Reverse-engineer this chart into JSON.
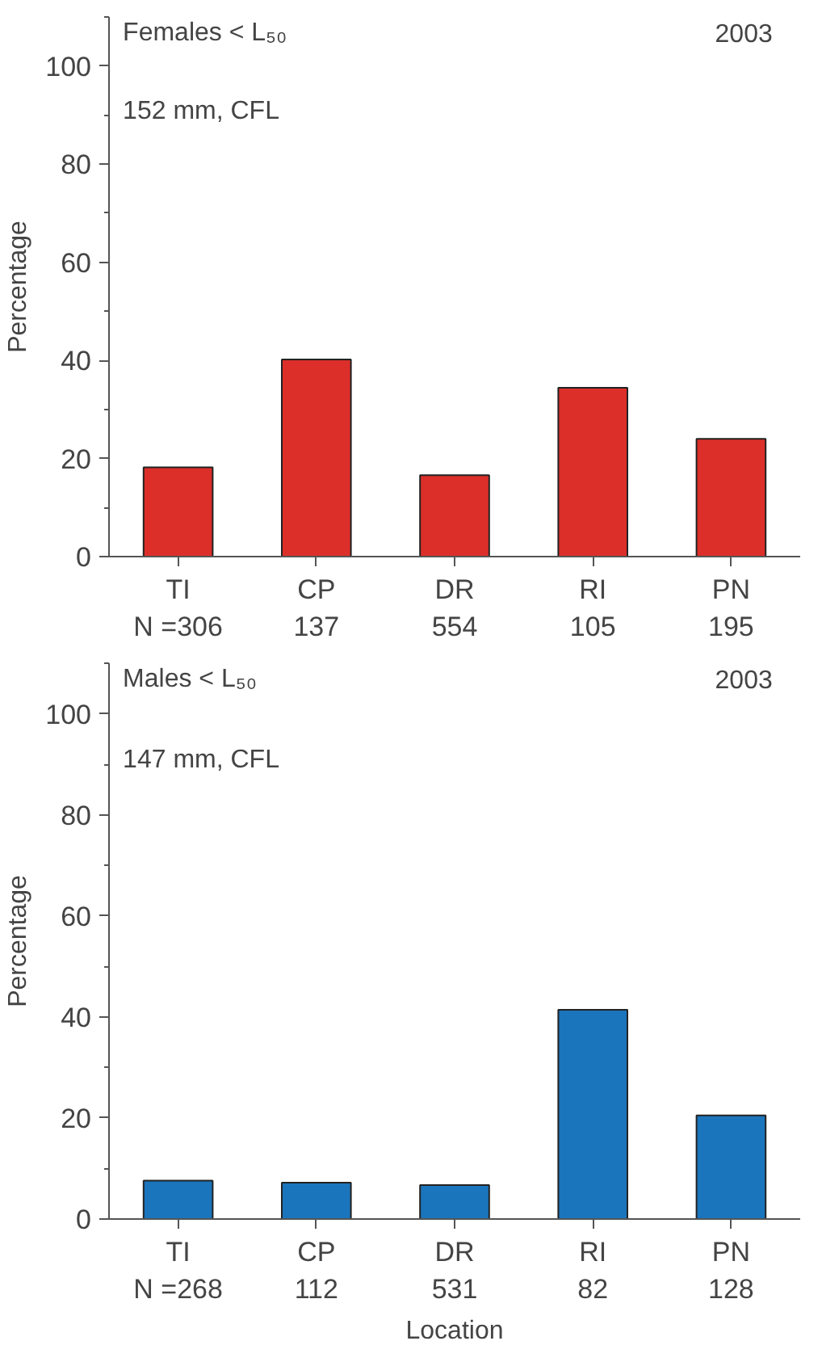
{
  "chart_data": [
    {
      "type": "bar",
      "title": "Females < L₅₀",
      "ylabel": "Percentage",
      "annotations": [
        "152 mm, CFL",
        "2003"
      ],
      "categories": [
        "TI\nN =306",
        "CP\n137",
        "DR\n554",
        "RI\n105",
        "PN\n195"
      ],
      "series": [
        {
          "color": "#dc2f2a",
          "values": [
            18.2,
            40.2,
            16.6,
            34.4,
            24.0
          ]
        }
      ],
      "ylim": [
        0,
        110
      ],
      "yticks": [
        0,
        20,
        40,
        60,
        80,
        100
      ]
    },
    {
      "type": "bar",
      "title": "Males < L₅₀",
      "ylabel": "Percentage",
      "xlabel": "Location",
      "annotations": [
        "147 mm, CFL",
        "2003"
      ],
      "categories": [
        "TI\nN =268",
        "CP\n112",
        "DR\n531",
        "RI\n82",
        "PN\n128"
      ],
      "series": [
        {
          "color": "#1b75bc",
          "values": [
            7.6,
            7.2,
            6.7,
            41.4,
            20.5
          ]
        }
      ],
      "ylim": [
        0,
        110
      ],
      "yticks": [
        0,
        20,
        40,
        60,
        80,
        100
      ]
    }
  ]
}
